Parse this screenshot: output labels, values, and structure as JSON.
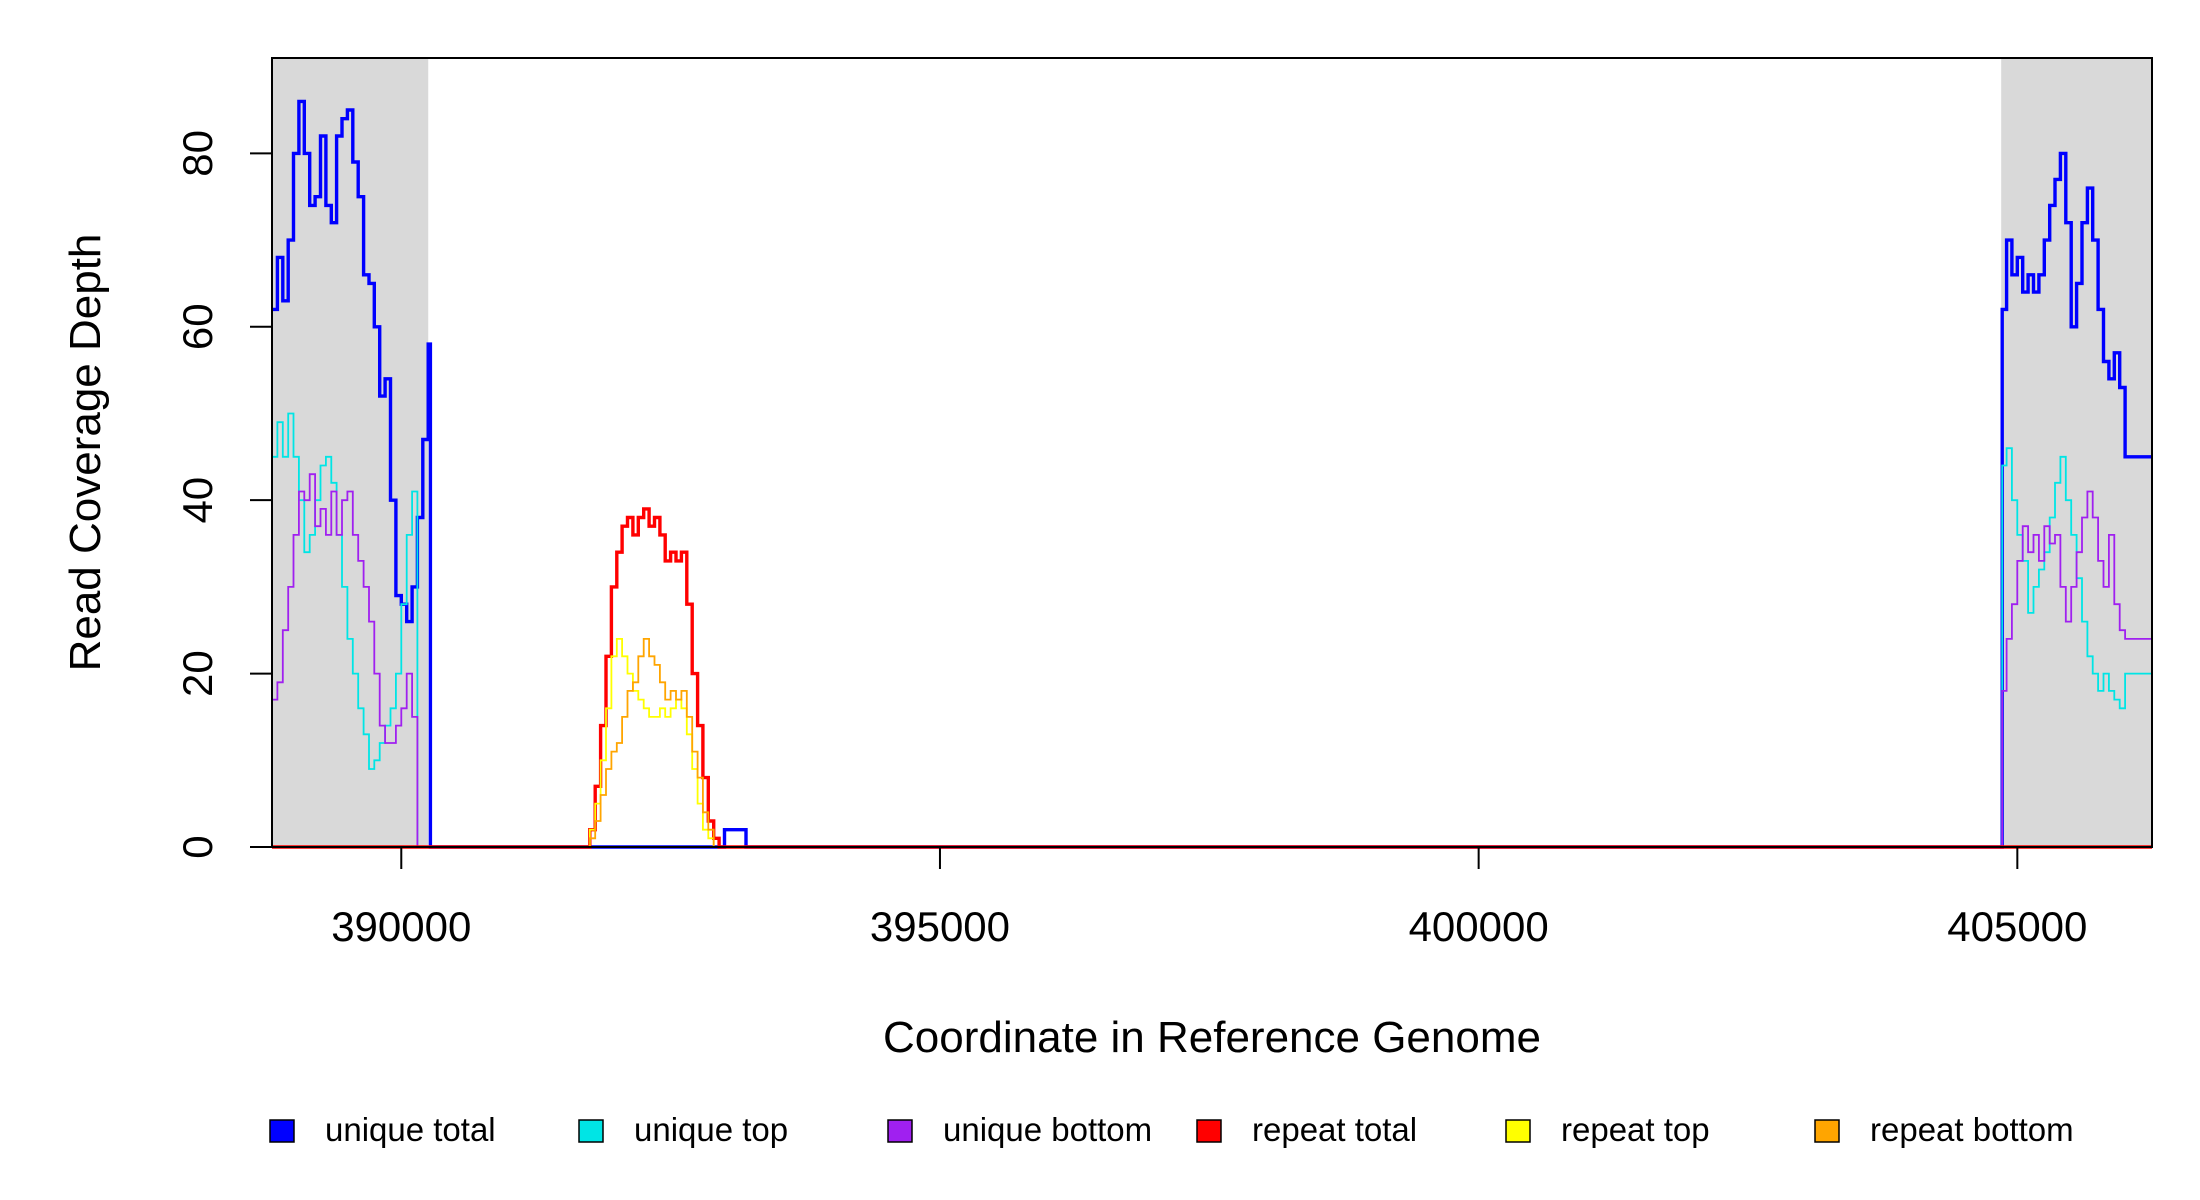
{
  "chart_data": {
    "type": "line",
    "xlabel": "Coordinate in Reference Genome",
    "ylabel": "Read Coverage Depth",
    "xlim": [
      388800,
      406250
    ],
    "ylim": [
      0,
      91
    ],
    "x_ticks": [
      390000,
      395000,
      400000,
      405000
    ],
    "y_ticks": [
      0,
      20,
      40,
      60,
      80
    ],
    "grid": false,
    "legend_placement": "bottom",
    "shaded_regions": [
      {
        "x_start": 388800,
        "x_end": 390250,
        "color": "#d9d9d9"
      },
      {
        "x_start": 404850,
        "x_end": 406250,
        "color": "#d9d9d9"
      }
    ],
    "series": [
      {
        "name": "unique total",
        "color": "#0000ff",
        "step": true,
        "points": [
          [
            388800,
            62
          ],
          [
            388850,
            68
          ],
          [
            388900,
            63
          ],
          [
            388950,
            70
          ],
          [
            389000,
            80
          ],
          [
            389050,
            86
          ],
          [
            389100,
            80
          ],
          [
            389150,
            74
          ],
          [
            389200,
            75
          ],
          [
            389250,
            82
          ],
          [
            389300,
            74
          ],
          [
            389350,
            72
          ],
          [
            389400,
            82
          ],
          [
            389450,
            84
          ],
          [
            389500,
            85
          ],
          [
            389550,
            79
          ],
          [
            389600,
            75
          ],
          [
            389650,
            66
          ],
          [
            389700,
            65
          ],
          [
            389750,
            60
          ],
          [
            389800,
            52
          ],
          [
            389850,
            54
          ],
          [
            389900,
            40
          ],
          [
            389950,
            29
          ],
          [
            390000,
            28
          ],
          [
            390050,
            26
          ],
          [
            390100,
            30
          ],
          [
            390150,
            38
          ],
          [
            390200,
            47
          ],
          [
            390250,
            58
          ],
          [
            390270,
            0
          ],
          [
            392950,
            0
          ],
          [
            393000,
            2
          ],
          [
            393200,
            0
          ],
          [
            404850,
            0
          ],
          [
            404860,
            62
          ],
          [
            404900,
            70
          ],
          [
            404950,
            66
          ],
          [
            405000,
            68
          ],
          [
            405050,
            64
          ],
          [
            405100,
            66
          ],
          [
            405150,
            64
          ],
          [
            405200,
            66
          ],
          [
            405250,
            70
          ],
          [
            405300,
            74
          ],
          [
            405350,
            77
          ],
          [
            405400,
            80
          ],
          [
            405450,
            72
          ],
          [
            405500,
            60
          ],
          [
            405550,
            65
          ],
          [
            405600,
            72
          ],
          [
            405650,
            76
          ],
          [
            405700,
            70
          ],
          [
            405750,
            62
          ],
          [
            405800,
            56
          ],
          [
            405850,
            54
          ],
          [
            405900,
            57
          ],
          [
            405950,
            53
          ],
          [
            406000,
            45
          ],
          [
            406250,
            45
          ]
        ]
      },
      {
        "name": "unique top",
        "color": "#00e5e5",
        "step": true,
        "points": [
          [
            388800,
            45
          ],
          [
            388850,
            49
          ],
          [
            388900,
            45
          ],
          [
            388950,
            50
          ],
          [
            389000,
            45
          ],
          [
            389050,
            40
          ],
          [
            389100,
            34
          ],
          [
            389150,
            36
          ],
          [
            389200,
            40
          ],
          [
            389250,
            44
          ],
          [
            389300,
            45
          ],
          [
            389350,
            42
          ],
          [
            389400,
            36
          ],
          [
            389450,
            30
          ],
          [
            389500,
            24
          ],
          [
            389550,
            20
          ],
          [
            389600,
            16
          ],
          [
            389650,
            13
          ],
          [
            389700,
            9
          ],
          [
            389750,
            10
          ],
          [
            389800,
            12
          ],
          [
            389850,
            14
          ],
          [
            389900,
            16
          ],
          [
            389950,
            20
          ],
          [
            390000,
            28
          ],
          [
            390050,
            36
          ],
          [
            390100,
            41
          ],
          [
            390150,
            0
          ],
          [
            390200,
            0
          ],
          [
            404850,
            0
          ],
          [
            404860,
            44
          ],
          [
            404900,
            46
          ],
          [
            404950,
            40
          ],
          [
            405000,
            36
          ],
          [
            405050,
            33
          ],
          [
            405100,
            27
          ],
          [
            405150,
            30
          ],
          [
            405200,
            32
          ],
          [
            405250,
            34
          ],
          [
            405300,
            38
          ],
          [
            405350,
            42
          ],
          [
            405400,
            45
          ],
          [
            405450,
            40
          ],
          [
            405500,
            36
          ],
          [
            405550,
            31
          ],
          [
            405600,
            26
          ],
          [
            405650,
            22
          ],
          [
            405700,
            20
          ],
          [
            405750,
            18
          ],
          [
            405800,
            20
          ],
          [
            405850,
            18
          ],
          [
            405900,
            17
          ],
          [
            405950,
            16
          ],
          [
            406000,
            20
          ],
          [
            406250,
            20
          ]
        ]
      },
      {
        "name": "unique bottom",
        "color": "#a020f0",
        "step": true,
        "points": [
          [
            388800,
            17
          ],
          [
            388850,
            19
          ],
          [
            388900,
            25
          ],
          [
            388950,
            30
          ],
          [
            389000,
            36
          ],
          [
            389050,
            41
          ],
          [
            389100,
            40
          ],
          [
            389150,
            43
          ],
          [
            389200,
            37
          ],
          [
            389250,
            39
          ],
          [
            389300,
            36
          ],
          [
            389350,
            41
          ],
          [
            389400,
            36
          ],
          [
            389450,
            40
          ],
          [
            389500,
            41
          ],
          [
            389550,
            36
          ],
          [
            389600,
            33
          ],
          [
            389650,
            30
          ],
          [
            389700,
            26
          ],
          [
            389750,
            20
          ],
          [
            389800,
            14
          ],
          [
            389850,
            12
          ],
          [
            389900,
            12
          ],
          [
            389950,
            14
          ],
          [
            390000,
            16
          ],
          [
            390050,
            20
          ],
          [
            390100,
            15
          ],
          [
            390150,
            0
          ],
          [
            390200,
            0
          ],
          [
            404850,
            0
          ],
          [
            404860,
            18
          ],
          [
            404900,
            24
          ],
          [
            404950,
            28
          ],
          [
            405000,
            33
          ],
          [
            405050,
            37
          ],
          [
            405100,
            34
          ],
          [
            405150,
            36
          ],
          [
            405200,
            33
          ],
          [
            405250,
            37
          ],
          [
            405300,
            35
          ],
          [
            405350,
            36
          ],
          [
            405400,
            30
          ],
          [
            405450,
            26
          ],
          [
            405500,
            30
          ],
          [
            405550,
            34
          ],
          [
            405600,
            38
          ],
          [
            405650,
            41
          ],
          [
            405700,
            38
          ],
          [
            405750,
            33
          ],
          [
            405800,
            30
          ],
          [
            405850,
            36
          ],
          [
            405900,
            28
          ],
          [
            405950,
            25
          ],
          [
            406000,
            24
          ],
          [
            406250,
            24
          ]
        ]
      },
      {
        "name": "repeat total",
        "color": "#ff0000",
        "step": true,
        "points": [
          [
            388800,
            0
          ],
          [
            391700,
            0
          ],
          [
            391750,
            2
          ],
          [
            391800,
            7
          ],
          [
            391850,
            14
          ],
          [
            391900,
            22
          ],
          [
            391950,
            30
          ],
          [
            392000,
            34
          ],
          [
            392050,
            37
          ],
          [
            392100,
            38
          ],
          [
            392150,
            36
          ],
          [
            392200,
            38
          ],
          [
            392250,
            39
          ],
          [
            392300,
            37
          ],
          [
            392350,
            38
          ],
          [
            392400,
            36
          ],
          [
            392450,
            33
          ],
          [
            392500,
            34
          ],
          [
            392550,
            33
          ],
          [
            392600,
            34
          ],
          [
            392650,
            28
          ],
          [
            392700,
            20
          ],
          [
            392750,
            14
          ],
          [
            392800,
            8
          ],
          [
            392850,
            3
          ],
          [
            392900,
            1
          ],
          [
            392950,
            0
          ],
          [
            406250,
            0
          ]
        ]
      },
      {
        "name": "repeat top",
        "color": "#ffff00",
        "step": true,
        "points": [
          [
            388800,
            0
          ],
          [
            391700,
            0
          ],
          [
            391750,
            2
          ],
          [
            391800,
            5
          ],
          [
            391850,
            10
          ],
          [
            391900,
            16
          ],
          [
            391950,
            22
          ],
          [
            392000,
            24
          ],
          [
            392050,
            22
          ],
          [
            392100,
            20
          ],
          [
            392150,
            18
          ],
          [
            392200,
            17
          ],
          [
            392250,
            16
          ],
          [
            392300,
            15
          ],
          [
            392350,
            15
          ],
          [
            392400,
            16
          ],
          [
            392450,
            15
          ],
          [
            392500,
            16
          ],
          [
            392550,
            17
          ],
          [
            392600,
            16
          ],
          [
            392650,
            13
          ],
          [
            392700,
            9
          ],
          [
            392750,
            5
          ],
          [
            392800,
            2
          ],
          [
            392850,
            1
          ],
          [
            392900,
            0
          ],
          [
            406250,
            0
          ]
        ]
      },
      {
        "name": "repeat bottom",
        "color": "#ffa500",
        "step": true,
        "points": [
          [
            388800,
            0
          ],
          [
            391700,
            0
          ],
          [
            391750,
            1
          ],
          [
            391800,
            3
          ],
          [
            391850,
            6
          ],
          [
            391900,
            9
          ],
          [
            391950,
            11
          ],
          [
            392000,
            12
          ],
          [
            392050,
            15
          ],
          [
            392100,
            18
          ],
          [
            392150,
            19
          ],
          [
            392200,
            22
          ],
          [
            392250,
            24
          ],
          [
            392300,
            22
          ],
          [
            392350,
            21
          ],
          [
            392400,
            19
          ],
          [
            392450,
            17
          ],
          [
            392500,
            18
          ],
          [
            392550,
            17
          ],
          [
            392600,
            18
          ],
          [
            392650,
            15
          ],
          [
            392700,
            11
          ],
          [
            392750,
            8
          ],
          [
            392800,
            4
          ],
          [
            392850,
            2
          ],
          [
            392900,
            0
          ],
          [
            406250,
            0
          ]
        ]
      }
    ]
  }
}
